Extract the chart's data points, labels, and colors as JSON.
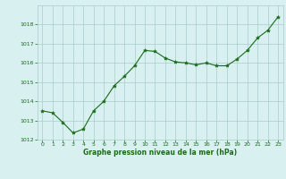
{
  "x": [
    0,
    1,
    2,
    3,
    4,
    5,
    6,
    7,
    8,
    9,
    10,
    11,
    12,
    13,
    14,
    15,
    16,
    17,
    18,
    19,
    20,
    21,
    22,
    23
  ],
  "y": [
    1013.5,
    1013.4,
    1012.9,
    1012.35,
    1012.55,
    1013.5,
    1014.0,
    1014.8,
    1015.3,
    1015.85,
    1016.65,
    1016.6,
    1016.25,
    1016.05,
    1016.0,
    1015.9,
    1016.0,
    1015.85,
    1015.85,
    1016.2,
    1016.65,
    1017.3,
    1017.7,
    1018.4
  ],
  "ylim": [
    1012,
    1019
  ],
  "yticks": [
    1012,
    1013,
    1014,
    1015,
    1016,
    1017,
    1018
  ],
  "xticks": [
    0,
    1,
    2,
    3,
    4,
    5,
    6,
    7,
    8,
    9,
    10,
    11,
    12,
    13,
    14,
    15,
    16,
    17,
    18,
    19,
    20,
    21,
    22,
    23
  ],
  "line_color": "#1a6b1a",
  "marker_color": "#1a6b1a",
  "bg_color": "#d8f0f0",
  "grid_color": "#aacccc",
  "xlabel": "Graphe pression niveau de la mer (hPa)",
  "xlabel_color": "#1a6b1a",
  "tick_color": "#1a6b1a",
  "figsize": [
    3.2,
    2.0
  ],
  "dpi": 100
}
